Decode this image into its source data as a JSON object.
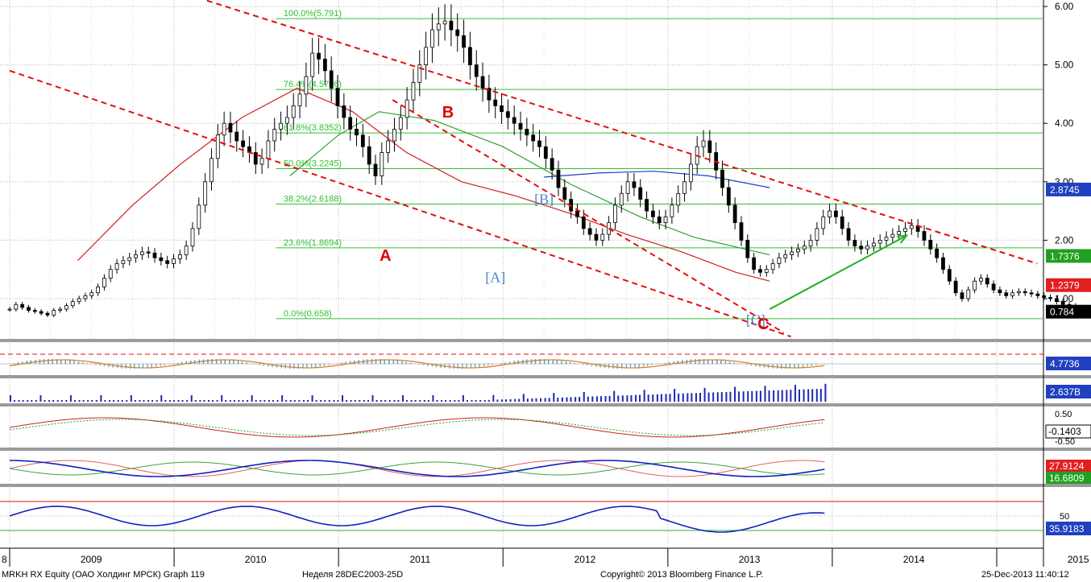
{
  "chart_data": {
    "type": "candlestick",
    "period": "weekly",
    "x_start": "2009-01-01",
    "x_end": "2015-04-01",
    "x_ticks": [
      "2009",
      "2010",
      "2011",
      "2012",
      "2013",
      "2014",
      "2015"
    ],
    "x_left_edge_label": "8",
    "price_axis": {
      "ticks": [
        1.0,
        2.0,
        3.0,
        4.0,
        5.0,
        6.0
      ],
      "tick_labels": [
        "1.00",
        "2.00",
        "3.00",
        "4.00",
        "5.00",
        "6.00"
      ],
      "ylim": [
        0.35,
        6.1
      ]
    },
    "price_series_weekly_close": [
      0.82,
      0.9,
      0.85,
      0.8,
      0.78,
      0.75,
      0.72,
      0.8,
      0.82,
      0.88,
      0.95,
      1.0,
      1.05,
      1.1,
      1.2,
      1.35,
      1.5,
      1.6,
      1.65,
      1.7,
      1.75,
      1.8,
      1.78,
      1.7,
      1.65,
      1.6,
      1.68,
      1.75,
      1.9,
      2.2,
      2.6,
      3.0,
      3.4,
      3.8,
      4.0,
      3.85,
      3.7,
      3.6,
      3.5,
      3.3,
      3.4,
      3.7,
      3.9,
      4.0,
      4.1,
      4.3,
      4.5,
      4.8,
      5.2,
      5.1,
      4.9,
      4.6,
      4.3,
      4.1,
      3.9,
      3.8,
      3.6,
      3.3,
      3.1,
      3.5,
      3.7,
      3.9,
      4.1,
      4.4,
      4.7,
      5.0,
      5.3,
      5.6,
      5.7,
      5.75,
      5.6,
      5.5,
      5.3,
      5.0,
      4.8,
      4.6,
      4.4,
      4.3,
      4.2,
      4.1,
      4.0,
      3.9,
      3.8,
      3.7,
      3.6,
      3.4,
      3.2,
      2.9,
      2.7,
      2.5,
      2.4,
      2.2,
      2.1,
      2.0,
      2.1,
      2.3,
      2.6,
      2.8,
      3.0,
      2.9,
      2.7,
      2.5,
      2.4,
      2.3,
      2.4,
      2.6,
      2.8,
      3.0,
      3.3,
      3.6,
      3.7,
      3.5,
      3.2,
      2.9,
      2.6,
      2.3,
      2.0,
      1.7,
      1.5,
      1.45,
      1.5,
      1.6,
      1.7,
      1.75,
      1.8,
      1.85,
      1.9,
      2.0,
      2.2,
      2.4,
      2.5,
      2.4,
      2.2,
      2.0,
      1.9,
      1.85,
      1.9,
      1.95,
      2.0,
      2.05,
      2.1,
      2.15,
      2.2,
      2.25,
      2.15,
      2.0,
      1.85,
      1.7,
      1.5,
      1.3,
      1.1,
      1.0,
      1.15,
      1.3,
      1.35,
      1.25,
      1.15,
      1.1,
      1.05,
      1.1,
      1.12,
      1.1,
      1.08,
      1.05,
      1.02,
      1.0,
      0.95,
      0.9,
      0.88,
      0.85,
      0.82,
      0.8,
      0.78,
      0.784
    ],
    "moving_averages": [
      {
        "color": "#d02020",
        "points": [
          [
            "2009-06-01",
            1.65
          ],
          [
            "2009-10-01",
            2.6
          ],
          [
            "2010-01-15",
            3.3
          ],
          [
            "2010-06-01",
            4.1
          ],
          [
            "2010-10-01",
            4.6
          ],
          [
            "2011-02-01",
            4.2
          ],
          [
            "2011-06-01",
            3.5
          ],
          [
            "2011-10-01",
            3.0
          ],
          [
            "2012-02-01",
            2.75
          ],
          [
            "2012-06-01",
            2.45
          ],
          [
            "2012-10-01",
            2.1
          ],
          [
            "2013-02-01",
            1.8
          ],
          [
            "2013-06-01",
            1.45
          ],
          [
            "2013-08-15",
            1.3
          ]
        ]
      },
      {
        "color": "#30a030",
        "points": [
          [
            "2010-09-15",
            3.1
          ],
          [
            "2011-01-01",
            3.8
          ],
          [
            "2011-04-01",
            4.2
          ],
          [
            "2011-08-01",
            4.05
          ],
          [
            "2012-01-01",
            3.6
          ],
          [
            "2012-06-01",
            2.95
          ],
          [
            "2012-11-01",
            2.4
          ],
          [
            "2013-03-01",
            2.05
          ],
          [
            "2013-08-15",
            1.75
          ]
        ]
      },
      {
        "color": "#2040c0",
        "points": [
          [
            "2012-04-01",
            3.08
          ],
          [
            "2012-08-01",
            3.15
          ],
          [
            "2012-12-01",
            3.18
          ],
          [
            "2013-04-01",
            3.1
          ],
          [
            "2013-08-15",
            2.9
          ]
        ]
      }
    ],
    "trendlines": [
      {
        "style": "red-dashed",
        "from": [
          "2009-01-01",
          4.9
        ],
        "to": [
          "2013-10-01",
          0.35
        ]
      },
      {
        "style": "red-dashed",
        "from": [
          "2010-03-15",
          6.1
        ],
        "to": [
          "2015-04-01",
          1.6
        ]
      },
      {
        "style": "red-dashed",
        "from": [
          "2011-05-01",
          4.4
        ],
        "to": [
          "2013-09-15",
          0.42
        ]
      },
      {
        "style": "green-arrow",
        "from": [
          "2013-08-15",
          0.82
        ],
        "to": [
          "2014-06-15",
          2.08
        ]
      }
    ],
    "fibonacci": {
      "levels": [
        {
          "label": "100.0%(5.791)",
          "value": 5.791
        },
        {
          "label": "76.4%(4.5796)",
          "value": 4.5796
        },
        {
          "label": "61.8%(3.8352)",
          "value": 3.8352
        },
        {
          "label": "50.0%(3.2245)",
          "value": 3.2245
        },
        {
          "label": "38.2%(2.6188)",
          "value": 2.6188
        },
        {
          "label": "23.6%(1.8694)",
          "value": 1.8694
        },
        {
          "label": "0.0%(0.658)",
          "value": 0.658
        }
      ],
      "line_from": "2010-08-15",
      "label_date": "2010-09-01"
    },
    "wave_labels": [
      {
        "text": "A",
        "date": "2011-04-15",
        "value": 1.65,
        "color": "#e00000",
        "style": "bold"
      },
      {
        "text": "B",
        "date": "2011-09-01",
        "value": 4.1,
        "color": "#e00000",
        "style": "bold"
      },
      {
        "text": "C",
        "date": "2013-08-01",
        "value": 0.48,
        "color": "#e00000",
        "style": "bold"
      },
      {
        "text": "[A]",
        "date": "2011-12-15",
        "value": 1.28,
        "color": "#5080d0",
        "style": "serif"
      },
      {
        "text": "[B]",
        "date": "2012-04-01",
        "value": 2.62,
        "color": "#5080d0",
        "style": "serif"
      },
      {
        "text": "[C]",
        "date": "2013-07-15",
        "value": 0.55,
        "color": "#5080d0",
        "style": "serif"
      }
    ],
    "right_axis_tags": [
      {
        "text": "2.8745",
        "value": 2.8745,
        "bg": "#2040c0",
        "fg": "#ffffff"
      },
      {
        "text": "1.7376",
        "value": 1.7376,
        "bg": "#20a020",
        "fg": "#ffffff"
      },
      {
        "text": "1.2379",
        "value": 1.2379,
        "bg": "#e02020",
        "fg": "#ffffff"
      },
      {
        "text": "0.784",
        "value": 0.784,
        "bg": "#000000",
        "fg": "#ffffff"
      }
    ],
    "panels": [
      {
        "name": "oscillator",
        "tag": {
          "text": "4.7736",
          "bg": "#2040c0",
          "fg": "#ffffff"
        }
      },
      {
        "name": "volume",
        "tag": {
          "text": "2.637B",
          "bg": "#2040c0",
          "fg": "#ffffff"
        }
      },
      {
        "name": "macd",
        "ticks": [
          "0.50",
          "-0.50"
        ],
        "tag": {
          "text": "-0.1403",
          "bg": "#ffffff",
          "fg": "#000000"
        }
      },
      {
        "name": "dmi",
        "tags": [
          {
            "text": "27.9124",
            "bg": "#e02020",
            "fg": "#ffffff"
          },
          {
            "text": "16.6809",
            "bg": "#20a020",
            "fg": "#ffffff"
          }
        ]
      },
      {
        "name": "rsi",
        "ticks": [
          "50"
        ],
        "tag": {
          "text": "35.9183",
          "bg": "#2040c0",
          "fg": "#ffffff"
        }
      }
    ]
  },
  "footer": {
    "left": "MRKH RX Equity (ОАО Холдинг МРСК) Graph 119",
    "middle": "Неделя 28DEC2003-25D",
    "copyright": "Copyright© 2013 Bloomberg Finance L.P.",
    "timestamp": "25-Dec-2013 11:40:12"
  }
}
